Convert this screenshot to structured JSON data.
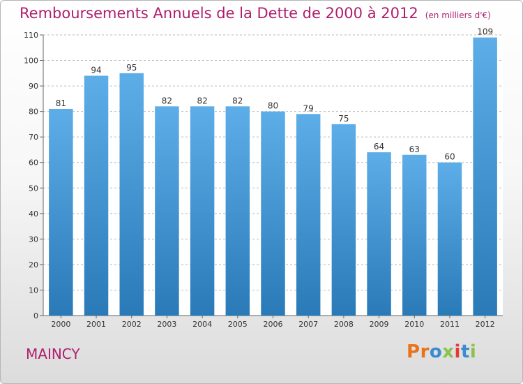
{
  "header": {
    "title": "Remboursements Annuels de la Dette de 2000 à 2012",
    "subtitle": "(en milliers d'€)"
  },
  "footer": {
    "commune": "MAINCY",
    "logo_letters": [
      "P",
      "r",
      "o",
      "x",
      "i",
      "t",
      "i"
    ],
    "logo_colors": [
      "#e8731a",
      "#e8731a",
      "#3a8bd0",
      "#8bc34a",
      "#e53935",
      "#3a8bd0",
      "#8bc34a"
    ]
  },
  "colors": {
    "title": "#b01e6e",
    "bar_top": "#5dade8",
    "bar_bottom": "#2a7ab8",
    "axis_text": "#333333",
    "grid": "#bbbbbb"
  },
  "chart_data": {
    "type": "bar",
    "categories": [
      "2000",
      "2001",
      "2002",
      "2003",
      "2004",
      "2005",
      "2006",
      "2007",
      "2008",
      "2009",
      "2010",
      "2011",
      "2012"
    ],
    "values": [
      81,
      94,
      95,
      82,
      82,
      82,
      80,
      79,
      75,
      64,
      63,
      60,
      109
    ],
    "ylim": [
      0,
      110
    ],
    "yticks": [
      0,
      10,
      20,
      30,
      40,
      50,
      60,
      70,
      80,
      90,
      100,
      110
    ],
    "grid": true,
    "data_labels": true
  }
}
